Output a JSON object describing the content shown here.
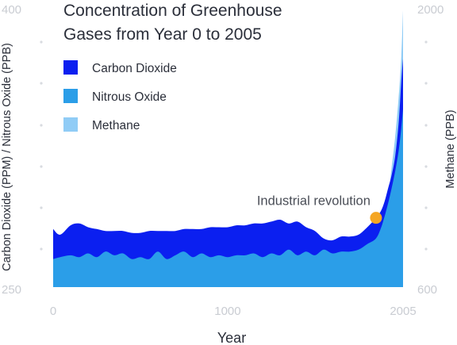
{
  "chart_data": {
    "type": "area",
    "title_line1": "Concentration of Greenhouse",
    "title_line2": "Gases from Year 0 to 2005",
    "xlabel": "Year",
    "ylabel_left": "Carbon Dioxide (PPM) / Nitrous Oxide (PPB)",
    "ylabel_right": "Methane (PPB)",
    "x_ticks": [
      "0",
      "1000",
      "2005"
    ],
    "x_tick_values": [
      0,
      1000,
      2005
    ],
    "xlim": [
      0,
      2005
    ],
    "ylim_left": [
      250,
      400
    ],
    "ylim_right": [
      600,
      2000
    ],
    "y_ticks_left": [
      "250",
      "400"
    ],
    "y_ticks_right": [
      "600",
      "2000"
    ],
    "legend_position": "top-left",
    "series": [
      {
        "name": "Carbon Dioxide",
        "axis": "left",
        "color": "#0b1ff0",
        "x": [
          0,
          40,
          100,
          150,
          200,
          250,
          300,
          350,
          400,
          450,
          500,
          550,
          600,
          650,
          700,
          750,
          800,
          850,
          900,
          950,
          1000,
          1050,
          1100,
          1150,
          1200,
          1250,
          1300,
          1350,
          1400,
          1450,
          1500,
          1550,
          1600,
          1650,
          1700,
          1750,
          1800,
          1850,
          1880,
          1900,
          1920,
          1940,
          1960,
          1980,
          1995,
          2005
        ],
        "y": [
          281,
          278,
          283,
          284,
          282,
          281,
          280,
          280,
          280,
          279,
          279,
          280,
          280,
          280,
          280,
          281,
          281,
          281,
          282,
          282,
          282,
          283,
          283,
          284,
          284,
          285,
          286,
          284,
          285,
          282,
          280,
          276,
          275,
          277,
          277,
          278,
          282,
          287,
          291,
          296,
          303,
          310,
          320,
          338,
          360,
          372
        ]
      },
      {
        "name": "Nitrous Oxide",
        "axis": "left",
        "color": "#2b9ee8",
        "x": [
          0,
          40,
          100,
          150,
          200,
          250,
          300,
          350,
          400,
          450,
          500,
          550,
          600,
          650,
          700,
          750,
          800,
          850,
          900,
          950,
          1000,
          1050,
          1100,
          1150,
          1200,
          1250,
          1300,
          1350,
          1400,
          1450,
          1500,
          1550,
          1600,
          1650,
          1700,
          1750,
          1800,
          1850,
          1880,
          1900,
          1920,
          1940,
          1960,
          1980,
          1995,
          2005
        ],
        "y": [
          265,
          266,
          267,
          266,
          268,
          266,
          269,
          267,
          268,
          265,
          266,
          265,
          269,
          265,
          267,
          269,
          266,
          268,
          266,
          267,
          266,
          267,
          267,
          268,
          266,
          268,
          267,
          270,
          267,
          269,
          267,
          270,
          268,
          269,
          269,
          270,
          273,
          276,
          282,
          288,
          295,
          303,
          312,
          323,
          335,
          345
        ]
      },
      {
        "name": "Methane",
        "axis": "right",
        "color": "#90ccf6",
        "x": [
          0,
          40,
          100,
          150,
          200,
          250,
          300,
          350,
          400,
          450,
          500,
          550,
          600,
          650,
          700,
          750,
          800,
          850,
          900,
          950,
          1000,
          1050,
          1100,
          1150,
          1200,
          1250,
          1300,
          1350,
          1400,
          1450,
          1500,
          1550,
          1600,
          1650,
          1700,
          1750,
          1800,
          1850,
          1880,
          1900,
          1920,
          1940,
          1960,
          1980,
          1995,
          2005
        ],
        "y": [
          640,
          650,
          660,
          650,
          665,
          655,
          660,
          655,
          650,
          640,
          645,
          650,
          660,
          655,
          660,
          665,
          670,
          675,
          680,
          680,
          680,
          685,
          690,
          695,
          690,
          690,
          690,
          690,
          700,
          700,
          700,
          690,
          690,
          700,
          710,
          730,
          780,
          850,
          900,
          950,
          1050,
          1200,
          1350,
          1550,
          1750,
          1980
        ]
      }
    ],
    "annotations": [
      {
        "text": "Industrial revolution",
        "x": 1850,
        "y": 287,
        "axis": "left",
        "marker_color": "#f5a623"
      }
    ]
  },
  "legend_swatch_color": "#0b1ff0"
}
